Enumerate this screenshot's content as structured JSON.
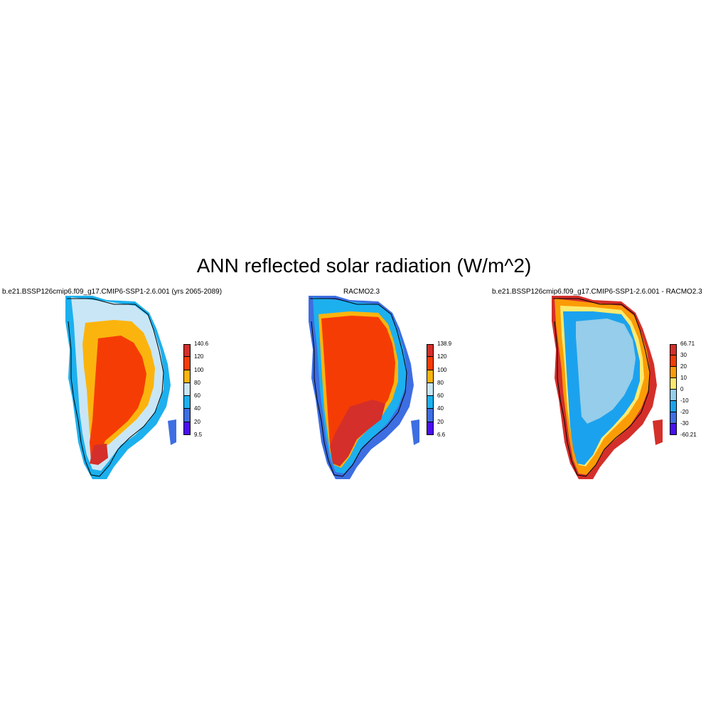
{
  "figure": {
    "title": "ANN reflected solar radiation (W/m^2)"
  },
  "panels": [
    {
      "title": "b.e21.BSSP126cmip6.f09_g17.CMIP6-SSP1-2.6.001 (yrs 2065-2089)",
      "colorbar": {
        "labels": [
          "140.6",
          "120",
          "100",
          "80",
          "60",
          "40",
          "20",
          "9.5"
        ],
        "colors": [
          "#d42f2a",
          "#f63c05",
          "#fbb40e",
          "#c9e6f6",
          "#1cb0ee",
          "#3d6ee2",
          "#4a0ff2"
        ]
      }
    },
    {
      "title": "RACMO2.3",
      "colorbar": {
        "labels": [
          "138.9",
          "120",
          "100",
          "80",
          "60",
          "40",
          "20",
          "6.6"
        ],
        "colors": [
          "#d42f2a",
          "#f63c05",
          "#fbb40e",
          "#c9e6f6",
          "#1cb0ee",
          "#3d6ee2",
          "#4a0ff2"
        ]
      }
    },
    {
      "title": "b.e21.BSSP126cmip6.f09_g17.CMIP6-SSP1-2.6.001 - RACMO2.3",
      "colorbar": {
        "labels": [
          "66.71",
          "30",
          "20",
          "10",
          "0",
          "-10",
          "-20",
          "-30",
          "-60.21"
        ],
        "colors": [
          "#d42f2a",
          "#f63c05",
          "#fb9c06",
          "#fbea6e",
          "#95cdea",
          "#1ba2ee",
          "#3f6ee3",
          "#4a0ff2"
        ]
      }
    }
  ]
}
